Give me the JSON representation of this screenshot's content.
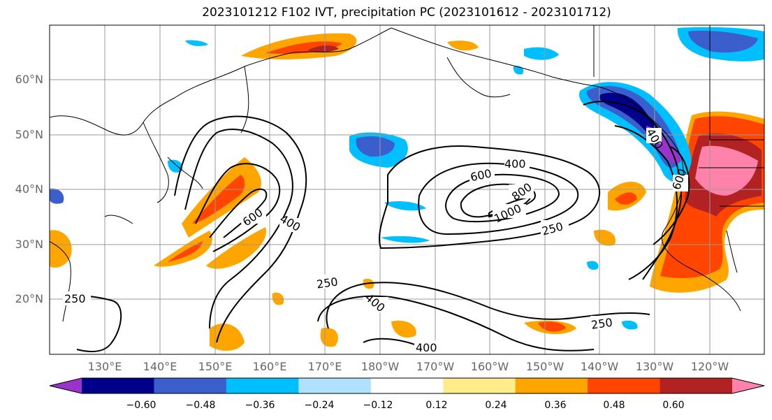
{
  "title": "2023101212 F102 IVT, precipitation PC (2023101612 - 2023101712)",
  "lat_labels": [
    "60°N",
    "50°N",
    "40°N",
    "30°N",
    "20°N"
  ],
  "lon_labels": [
    "130°E",
    "140°E",
    "150°E",
    "160°E",
    "170°E",
    "180°W",
    "170°W",
    "160°W",
    "150°W",
    "140°W",
    "130°W",
    "120°W"
  ],
  "colorbar": {
    "ticks": [
      "−0.60",
      "−0.48",
      "−0.36",
      "−0.24",
      "−0.12",
      "0.12",
      "0.24",
      "0.36",
      "0.48",
      "0.60"
    ],
    "colors": [
      "#9933cc",
      "#00008b",
      "#3a5fcd",
      "#00bfff",
      "#b0e2ff",
      "#ffffff",
      "#ffec8b",
      "#ffa500",
      "#ff4500",
      "#b22222",
      "#ff82ab"
    ]
  },
  "contour_labels": [
    "250",
    "400",
    "600",
    "800",
    "1000"
  ],
  "map_layers": {
    "contours": "IVT",
    "fill": "precipitation PC",
    "grid": true
  }
}
